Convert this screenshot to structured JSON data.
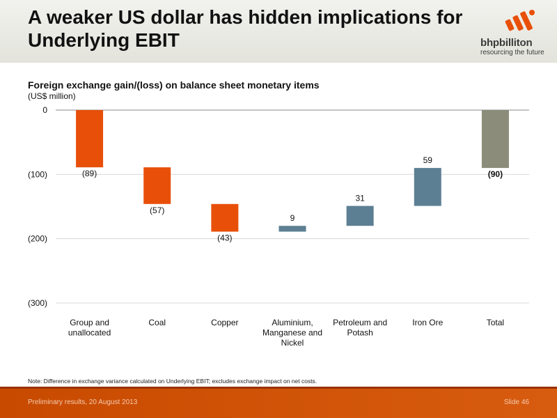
{
  "slide": {
    "title": "A weaker US dollar has hidden implications for Underlying EBIT",
    "logo_word": "bhpbilliton",
    "logo_tagline": "resourcing the future",
    "note": "Note:  Difference in exchange variance calculated on Underlying EBIT; excludes exchange impact on net costs.",
    "footer_left": "Preliminary results, 20 August 2013",
    "footer_right": "Slide 46"
  },
  "colors": {
    "negative": "#e8500a",
    "positive": "#5d7f93",
    "total": "#8c8c7a",
    "footer": "#d05510",
    "gridline": "#d9d9d9"
  },
  "chart_data": {
    "type": "waterfall",
    "title": "Foreign exchange gain/(loss) on balance sheet monetary items",
    "subtitle": "(US$ million)",
    "ylim": [
      -300,
      0
    ],
    "yticks": [
      0,
      -100,
      -200,
      -300
    ],
    "ytick_labels": [
      "0",
      "(100)",
      "(200)",
      "(300)"
    ],
    "grid": true,
    "categories": [
      [
        "Group and",
        "unallocated"
      ],
      [
        "Coal"
      ],
      [
        "Copper"
      ],
      [
        "Aluminium,",
        "Manganese and",
        "Nickel"
      ],
      [
        "Petroleum and",
        "Potash"
      ],
      [
        "Iron Ore"
      ],
      [
        "Total"
      ]
    ],
    "values": [
      -89,
      -57,
      -43,
      9,
      31,
      59,
      -90
    ],
    "value_labels": [
      "(89)",
      "(57)",
      "(43)",
      "9",
      "31",
      "59",
      "(90)"
    ],
    "is_total": [
      false,
      false,
      false,
      false,
      false,
      false,
      true
    ]
  }
}
